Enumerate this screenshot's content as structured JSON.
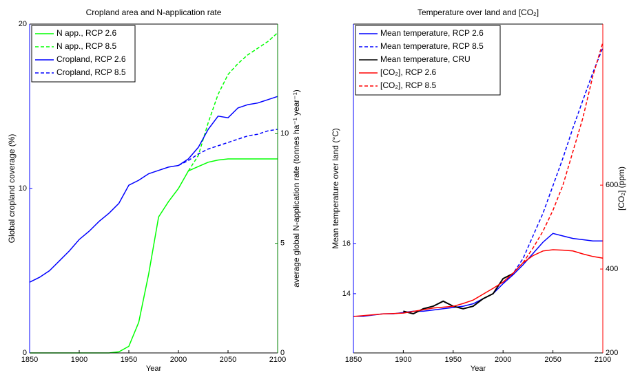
{
  "chart_data": [
    {
      "type": "line",
      "title": "Cropland area and N-application rate",
      "xlabel": "Year",
      "ylabel": "Global cropland coverage (%)",
      "y2label": "average global N-application rate (tonnes ha⁻¹ year⁻¹)",
      "y_color": "#0000ff",
      "y2_color": "#008000",
      "legend": "upper left",
      "x": [
        1850,
        1860,
        1870,
        1880,
        1890,
        1900,
        1910,
        1920,
        1930,
        1940,
        1950,
        1960,
        1970,
        1980,
        1990,
        2000,
        2010,
        2020,
        2030,
        2040,
        2050,
        2060,
        2070,
        2080,
        2090,
        2100
      ],
      "xlim": [
        1850,
        2100
      ],
      "xticks": [
        1850,
        1900,
        1950,
        2000,
        2050,
        2100
      ],
      "ylim": [
        0,
        20
      ],
      "yticks": [
        0,
        10,
        20
      ],
      "y2lim": [
        0,
        15
      ],
      "y2ticks": [
        0,
        5,
        10
      ],
      "series": [
        {
          "name": "N app., RCP 2.6",
          "color": "#00ff00",
          "linestyle": "solid",
          "axis": "y2",
          "values": [
            0,
            0,
            0,
            0,
            0,
            0,
            0,
            0,
            0,
            0.05,
            0.3,
            1.4,
            3.6,
            6.2,
            6.9,
            7.5,
            8.3,
            8.5,
            8.7,
            8.8,
            8.85,
            8.85,
            8.85,
            8.85,
            8.85,
            8.85
          ]
        },
        {
          "name": "N app., RCP 8.5",
          "color": "#00ff00",
          "linestyle": "dashed",
          "axis": "y2",
          "values": [
            null,
            null,
            null,
            null,
            null,
            null,
            null,
            null,
            null,
            null,
            null,
            null,
            null,
            null,
            null,
            null,
            8.3,
            9.0,
            10.5,
            11.8,
            12.7,
            13.2,
            13.6,
            13.9,
            14.2,
            14.6
          ]
        },
        {
          "name": "Cropland, RCP 2.6",
          "color": "#0000ff",
          "linestyle": "solid",
          "values": [
            4.3,
            4.6,
            5.0,
            5.6,
            6.2,
            6.9,
            7.4,
            8.0,
            8.5,
            9.1,
            10.2,
            10.5,
            10.9,
            11.1,
            11.3,
            11.4,
            11.8,
            12.5,
            13.6,
            14.4,
            14.3,
            14.9,
            15.1,
            15.2,
            15.4,
            15.6
          ]
        },
        {
          "name": "Cropland, RCP 8.5",
          "color": "#0000ff",
          "linestyle": "dashed",
          "values": [
            null,
            null,
            null,
            null,
            null,
            null,
            null,
            null,
            null,
            null,
            null,
            null,
            null,
            null,
            null,
            11.4,
            11.7,
            12.1,
            12.4,
            12.6,
            12.8,
            13.0,
            13.2,
            13.3,
            13.5,
            13.6
          ]
        }
      ]
    },
    {
      "type": "line",
      "title": "Temperature over land and [CO₂]",
      "xlabel": "Year",
      "ylabel": "Mean temperature over land (°C)",
      "y2label": "[CO₂] (ppm)",
      "y_color": "#0000ff",
      "y2_color": "#ff0000",
      "legend": "upper left",
      "x": [
        1850,
        1860,
        1870,
        1880,
        1890,
        1900,
        1910,
        1920,
        1930,
        1940,
        1950,
        1960,
        1970,
        1980,
        1990,
        2000,
        2010,
        2020,
        2030,
        2040,
        2050,
        2060,
        2070,
        2080,
        2090,
        2100
      ],
      "xlim": [
        1850,
        2100
      ],
      "xticks": [
        1850,
        1900,
        1950,
        2000,
        2050,
        2100
      ],
      "ylim": [
        11.64,
        24.74
      ],
      "yticks": [
        14,
        16
      ],
      "y2lim": [
        200,
        984
      ],
      "y2ticks": [
        200,
        400,
        600
      ],
      "series": [
        {
          "name": "Mean temperature, RCP 2.6",
          "color": "#0000ff",
          "linestyle": "solid",
          "values": [
            13.1,
            13.1,
            13.15,
            13.2,
            13.2,
            13.25,
            13.3,
            13.3,
            13.35,
            13.4,
            13.45,
            13.5,
            13.6,
            13.8,
            14.0,
            14.4,
            14.75,
            15.15,
            15.6,
            16.05,
            16.4,
            16.3,
            16.2,
            16.15,
            16.1,
            16.1
          ]
        },
        {
          "name": "Mean temperature, RCP 8.5",
          "color": "#0000ff",
          "linestyle": "dashed",
          "values": [
            null,
            null,
            null,
            null,
            null,
            null,
            null,
            null,
            null,
            null,
            null,
            null,
            null,
            null,
            null,
            14.4,
            14.8,
            15.4,
            16.3,
            17.2,
            18.3,
            19.4,
            20.6,
            21.7,
            22.8,
            23.8
          ]
        },
        {
          "name": "Mean temperature, CRU",
          "color": "#000000",
          "linestyle": "solid",
          "values": [
            null,
            null,
            null,
            null,
            null,
            13.3,
            13.2,
            13.4,
            13.5,
            13.7,
            13.5,
            13.4,
            13.5,
            13.8,
            14.0,
            14.6,
            14.8,
            null,
            null,
            null,
            null,
            null,
            null,
            null,
            null,
            null
          ]
        },
        {
          "name": "[CO₂], RCP 2.6",
          "color": "#ff0000",
          "linestyle": "solid",
          "axis": "y2",
          "values": [
            287,
            289,
            291,
            293,
            294,
            295,
            299,
            303,
            307,
            309,
            311,
            318,
            326,
            340,
            354,
            369,
            390,
            415,
            432,
            443,
            446,
            445,
            443,
            436,
            430,
            426
          ]
        },
        {
          "name": "[CO₂], RCP 8.5",
          "color": "#ff0000",
          "linestyle": "dashed",
          "axis": "y2",
          "values": [
            null,
            null,
            null,
            null,
            null,
            null,
            null,
            null,
            null,
            null,
            null,
            null,
            null,
            null,
            null,
            369,
            390,
            415,
            450,
            490,
            540,
            600,
            680,
            760,
            860,
            940
          ]
        }
      ]
    }
  ]
}
